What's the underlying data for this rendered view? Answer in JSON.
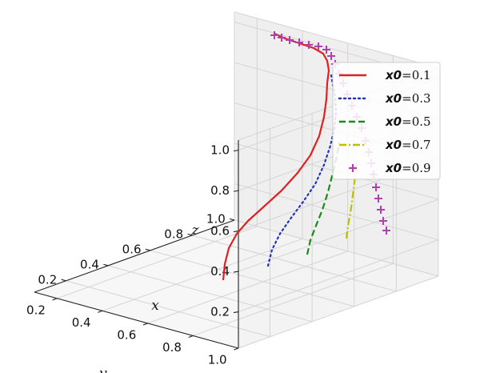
{
  "chart_data": {
    "type": "line",
    "projection": "3d",
    "xlabel": "x",
    "ylabel": "y",
    "zlabel": "z",
    "xlim": [
      0.05,
      1.0
    ],
    "ylim": [
      0.1,
      1.0
    ],
    "zlim": [
      0.02,
      1.05
    ],
    "x_ticks": [
      "0.2",
      "0.4",
      "0.6",
      "0.8",
      "1.0"
    ],
    "y_ticks": [
      "0.2",
      "0.4",
      "0.6",
      "0.8",
      "1.0"
    ],
    "z_ticks": [
      "0.2",
      "0.4",
      "0.6",
      "0.8",
      "1.0"
    ],
    "grid": true,
    "legend_position": "upper-right",
    "series": [
      {
        "name": "0.1",
        "legend_symbol": "x0",
        "legend_eq": "=",
        "color": "#e02020",
        "style": "solid",
        "marker": "none"
      },
      {
        "name": "0.3",
        "legend_symbol": "x0",
        "legend_eq": "=",
        "color": "#2233bb",
        "style": "dotted",
        "marker": "none"
      },
      {
        "name": "0.5",
        "legend_symbol": "x0",
        "legend_eq": "=",
        "color": "#1a8a1a",
        "style": "dashed",
        "marker": "none"
      },
      {
        "name": "0.7",
        "legend_symbol": "x0",
        "legend_eq": "=",
        "color": "#bfbf00",
        "style": "dashdot",
        "marker": "none"
      },
      {
        "name": "0.9",
        "legend_symbol": "x0",
        "legend_eq": "=",
        "color": "#b03fb0",
        "style": "none",
        "marker": "+"
      }
    ]
  }
}
